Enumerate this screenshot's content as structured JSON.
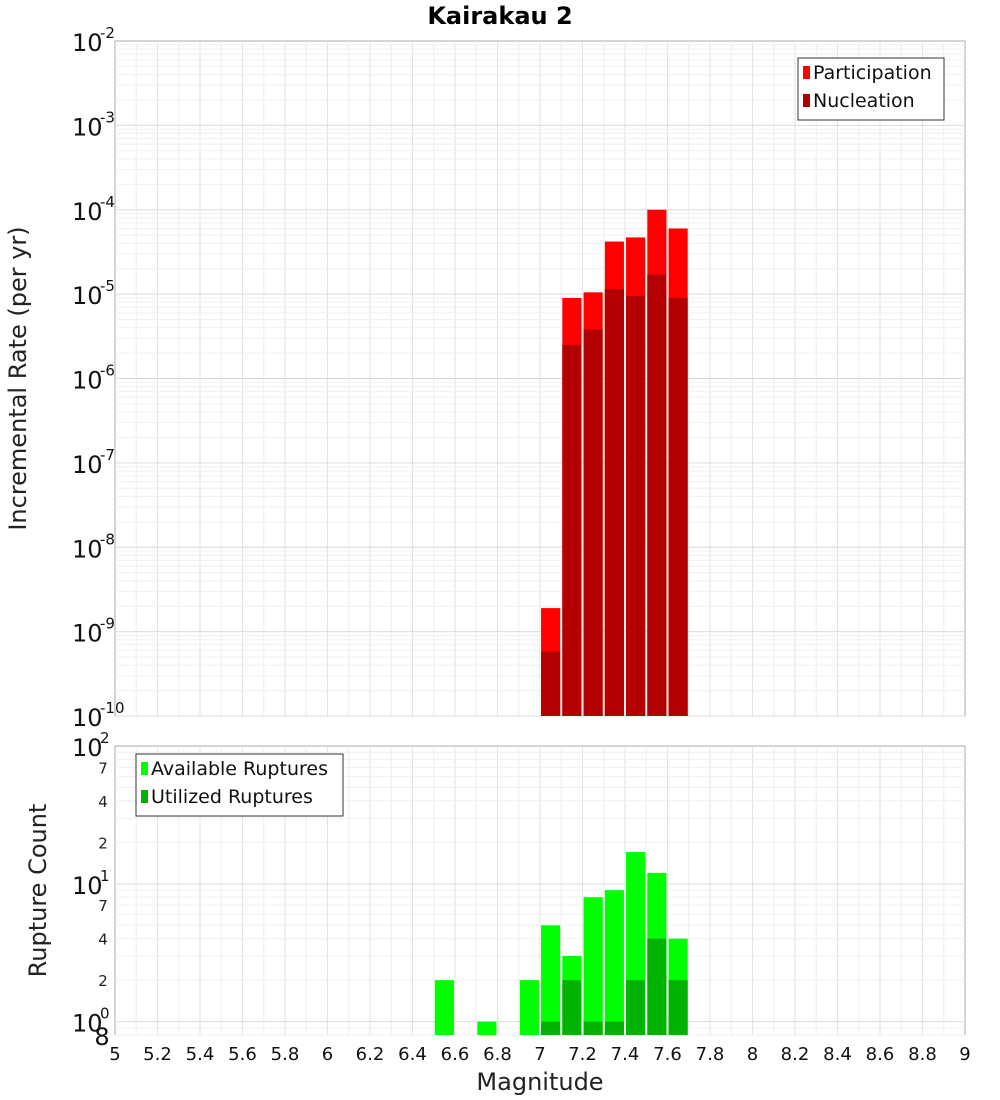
{
  "chart_data": [
    {
      "type": "bar",
      "title": "Kairakau 2",
      "ylabel": "Incremental Rate (per yr)",
      "yscale": "log",
      "ylim": [
        1e-10,
        0.01
      ],
      "xlim": [
        5,
        9
      ],
      "grid": true,
      "legend_position": "top-right",
      "y_ticks": [
        {
          "base": "10",
          "exp": "-10",
          "value": 1e-10
        },
        {
          "base": "10",
          "exp": "-9",
          "value": 1e-09
        },
        {
          "base": "10",
          "exp": "-8",
          "value": 1e-08
        },
        {
          "base": "10",
          "exp": "-7",
          "value": 1e-07
        },
        {
          "base": "10",
          "exp": "-6",
          "value": 1e-06
        },
        {
          "base": "10",
          "exp": "-5",
          "value": 1e-05
        },
        {
          "base": "10",
          "exp": "-4",
          "value": 0.0001
        },
        {
          "base": "10",
          "exp": "-3",
          "value": 0.001
        },
        {
          "base": "10",
          "exp": "-2",
          "value": 0.01
        }
      ],
      "series": [
        {
          "name": "Participation",
          "color": "#ff0000",
          "x": [
            7.05,
            7.15,
            7.25,
            7.35,
            7.45,
            7.55,
            7.65
          ],
          "values": [
            1.9e-09,
            9e-06,
            1.05e-05,
            4.2e-05,
            4.7e-05,
            0.0001,
            6e-05
          ]
        },
        {
          "name": "Nucleation",
          "color": "#b20000",
          "x": [
            7.05,
            7.15,
            7.25,
            7.35,
            7.45,
            7.55,
            7.65
          ],
          "values": [
            5.8e-10,
            2.5e-06,
            3.8e-06,
            1.15e-05,
            9.5e-06,
            1.7e-05,
            9e-06
          ]
        }
      ]
    },
    {
      "type": "bar",
      "ylabel": "Rupture Count",
      "xlabel": "Magnitude",
      "yscale": "log",
      "ylim": [
        0.8,
        100
      ],
      "xlim": [
        5,
        9
      ],
      "grid": true,
      "legend_position": "top-left",
      "x_ticks": [
        "5",
        "5.2",
        "5.4",
        "5.6",
        "5.8",
        "6",
        "6.2",
        "6.4",
        "6.6",
        "6.8",
        "7",
        "7.2",
        "7.4",
        "7.6",
        "7.8",
        "8",
        "8.2",
        "8.4",
        "8.6",
        "8.8",
        "9"
      ],
      "y_major_ticks": [
        {
          "base": "10",
          "exp": "0",
          "value": 1
        },
        {
          "base": "10",
          "exp": "1",
          "value": 10
        },
        {
          "base": "10",
          "exp": "2",
          "value": 100
        }
      ],
      "y_minor_ticks": [
        {
          "label": "8",
          "value": 0.8
        },
        {
          "label": "2",
          "value": 2
        },
        {
          "label": "4",
          "value": 4
        },
        {
          "label": "7",
          "value": 7
        },
        {
          "label": "2",
          "value": 20
        },
        {
          "label": "4",
          "value": 40
        },
        {
          "label": "7",
          "value": 70
        }
      ],
      "series": [
        {
          "name": "Available Ruptures",
          "color": "#00ff00",
          "x": [
            6.55,
            6.75,
            6.95,
            7.05,
            7.15,
            7.25,
            7.35,
            7.45,
            7.55,
            7.65
          ],
          "values": [
            2,
            1,
            2,
            5,
            3,
            8,
            9,
            17,
            12,
            4
          ]
        },
        {
          "name": "Utilized Ruptures",
          "color": "#00b200",
          "x": [
            7.05,
            7.15,
            7.25,
            7.35,
            7.45,
            7.55,
            7.65
          ],
          "values": [
            1,
            2,
            1,
            1,
            2,
            4,
            2
          ]
        }
      ]
    }
  ]
}
